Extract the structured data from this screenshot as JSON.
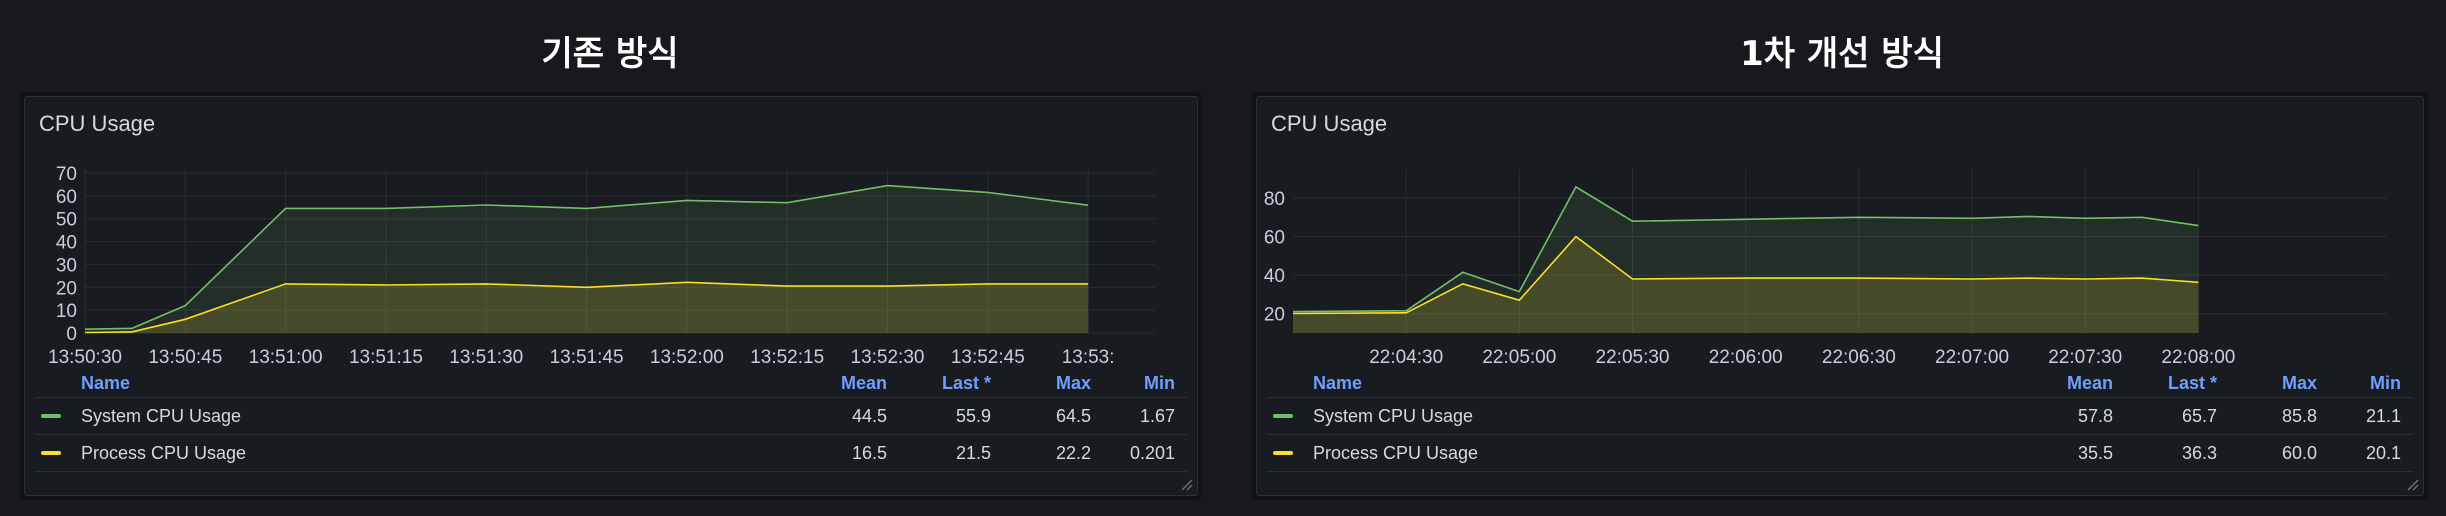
{
  "titles": [
    "기존 방식",
    "1차 개선 방식"
  ],
  "colors": {
    "system": "#73bf69",
    "process": "#fade2a",
    "header": "#6e9fff"
  },
  "legend_header": {
    "name": "Name",
    "mean": "Mean",
    "last": "Last *",
    "max": "Max",
    "min": "Min"
  },
  "panels": [
    {
      "title": "CPU Usage",
      "legend": [
        {
          "name": "System CPU Usage",
          "mean": "44.5",
          "last": "55.9",
          "max": "64.5",
          "min": "1.67"
        },
        {
          "name": "Process CPU Usage",
          "mean": "16.5",
          "last": "21.5",
          "max": "22.2",
          "min": "0.201"
        }
      ]
    },
    {
      "title": "CPU Usage",
      "legend": [
        {
          "name": "System CPU Usage",
          "mean": "57.8",
          "last": "65.7",
          "max": "85.8",
          "min": "21.1"
        },
        {
          "name": "Process CPU Usage",
          "mean": "35.5",
          "last": "36.3",
          "max": "60.0",
          "min": "20.1"
        }
      ]
    }
  ],
  "chart_data": [
    {
      "type": "area",
      "title": "CPU Usage",
      "x": [
        "13:50:30",
        "13:50:37",
        "13:50:45",
        "13:51:00",
        "13:51:15",
        "13:51:30",
        "13:51:45",
        "13:52:00",
        "13:52:15",
        "13:52:30",
        "13:52:45",
        "13:53:00"
      ],
      "xticks": [
        "13:50:30",
        "13:50:45",
        "13:51:00",
        "13:51:15",
        "13:51:30",
        "13:51:45",
        "13:52:00",
        "13:52:15",
        "13:52:30",
        "13:52:45",
        "13:53:"
      ],
      "ylim": [
        0,
        70
      ],
      "yticks": [
        0,
        10,
        20,
        30,
        40,
        50,
        60,
        70
      ],
      "grid": true,
      "series": [
        {
          "name": "System CPU Usage",
          "values": [
            1.67,
            2,
            12,
            54.5,
            54.5,
            56,
            54.5,
            58,
            57,
            64.5,
            61.5,
            55.9
          ]
        },
        {
          "name": "Process CPU Usage",
          "values": [
            0.2,
            0.5,
            6,
            21.5,
            21,
            21.5,
            20,
            22.2,
            20.5,
            20.5,
            21.5,
            21.5
          ]
        }
      ]
    },
    {
      "type": "area",
      "title": "CPU Usage",
      "x": [
        "22:04:00",
        "22:04:30",
        "22:04:45",
        "22:05:00",
        "22:05:15",
        "22:05:30",
        "22:06:00",
        "22:06:30",
        "22:07:00",
        "22:07:15",
        "22:07:30",
        "22:07:45",
        "22:08:00"
      ],
      "xticks": [
        "22:04:30",
        "22:05:00",
        "22:05:30",
        "22:06:00",
        "22:06:30",
        "22:07:00",
        "22:07:30",
        "22:08:00"
      ],
      "ylim": [
        10,
        93
      ],
      "yticks": [
        20,
        40,
        60,
        80
      ],
      "grid": true,
      "series": [
        {
          "name": "System CPU Usage",
          "values": [
            21.1,
            21.5,
            41.5,
            31.5,
            85.8,
            68,
            69,
            70,
            69.5,
            70.5,
            69.5,
            70,
            65.7
          ]
        },
        {
          "name": "Process CPU Usage",
          "values": [
            20.1,
            20.5,
            35.5,
            27,
            60,
            38,
            38.5,
            38.5,
            38,
            38.5,
            38,
            38.5,
            36.3
          ]
        }
      ]
    }
  ]
}
